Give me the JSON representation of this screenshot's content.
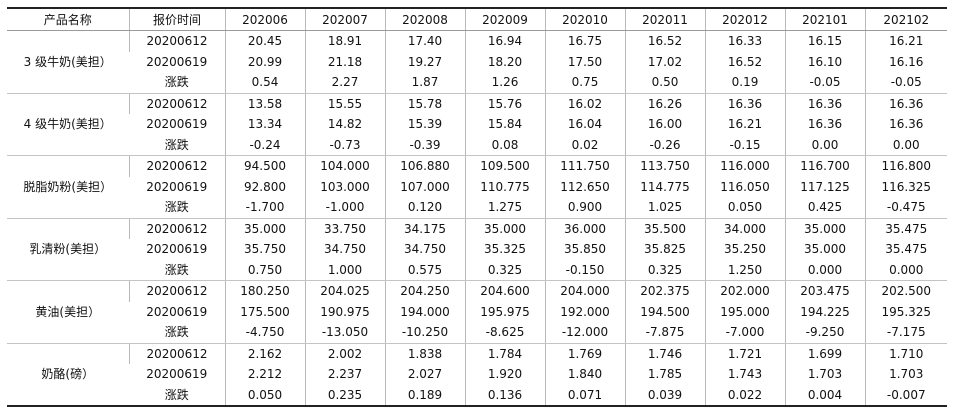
{
  "headers": [
    "产品名称",
    "报价时间",
    "202006",
    "202007",
    "202008",
    "202009",
    "202010",
    "202011",
    "202012",
    "202101",
    "202102"
  ],
  "groups": [
    {
      "name": "3 级牛奶(美担）",
      "rows": [
        {
          "date": "20200612",
          "values": [
            "20.45",
            "18.91",
            "17.40",
            "16.94",
            "16.75",
            "16.52",
            "16.33",
            "16.15",
            "16.21"
          ]
        },
        {
          "date": "20200619",
          "values": [
            "20.99",
            "21.18",
            "19.27",
            "18.20",
            "17.50",
            "17.02",
            "16.52",
            "16.10",
            "16.16"
          ]
        },
        {
          "date": "涨跌",
          "values": [
            "0.54",
            "2.27",
            "1.87",
            "1.26",
            "0.75",
            "0.50",
            "0.19",
            "-0.05",
            "-0.05"
          ]
        }
      ]
    },
    {
      "name": "4 级牛奶(美担）",
      "rows": [
        {
          "date": "20200612",
          "values": [
            "13.58",
            "15.55",
            "15.78",
            "15.76",
            "16.02",
            "16.26",
            "16.36",
            "16.36",
            "16.36"
          ]
        },
        {
          "date": "20200619",
          "values": [
            "13.34",
            "14.82",
            "15.39",
            "15.84",
            "16.04",
            "16.00",
            "16.21",
            "16.36",
            "16.36"
          ]
        },
        {
          "date": "涨跌",
          "values": [
            "-0.24",
            "-0.73",
            "-0.39",
            "0.08",
            "0.02",
            "-0.26",
            "-0.15",
            "0.00",
            "0.00"
          ]
        }
      ]
    },
    {
      "name": "脱脂奶粉(美担）",
      "rows": [
        {
          "date": "20200612",
          "values": [
            "94.500",
            "104.000",
            "106.880",
            "109.500",
            "111.750",
            "113.750",
            "116.000",
            "116.700",
            "116.800"
          ]
        },
        {
          "date": "20200619",
          "values": [
            "92.800",
            "103.000",
            "107.000",
            "110.775",
            "112.650",
            "114.775",
            "116.050",
            "117.125",
            "116.325"
          ]
        },
        {
          "date": "涨跌",
          "values": [
            "-1.700",
            "-1.000",
            "0.120",
            "1.275",
            "0.900",
            "1.025",
            "0.050",
            "0.425",
            "-0.475"
          ]
        }
      ]
    },
    {
      "name": "乳清粉(美担）",
      "rows": [
        {
          "date": "20200612",
          "values": [
            "35.000",
            "33.750",
            "34.175",
            "35.000",
            "36.000",
            "35.500",
            "34.000",
            "35.000",
            "35.475"
          ]
        },
        {
          "date": "20200619",
          "values": [
            "35.750",
            "34.750",
            "34.750",
            "35.325",
            "35.850",
            "35.825",
            "35.250",
            "35.000",
            "35.475"
          ]
        },
        {
          "date": "涨跌",
          "values": [
            "0.750",
            "1.000",
            "0.575",
            "0.325",
            "-0.150",
            "0.325",
            "1.250",
            "0.000",
            "0.000"
          ]
        }
      ]
    },
    {
      "name": "黄油(美担）",
      "rows": [
        {
          "date": "20200612",
          "values": [
            "180.250",
            "204.025",
            "204.250",
            "204.600",
            "204.000",
            "202.375",
            "202.000",
            "203.475",
            "202.500"
          ]
        },
        {
          "date": "20200619",
          "values": [
            "175.500",
            "190.975",
            "194.000",
            "195.975",
            "192.000",
            "194.500",
            "195.000",
            "194.225",
            "195.325"
          ]
        },
        {
          "date": "涨跌",
          "values": [
            "-4.750",
            "-13.050",
            "-10.250",
            "-8.625",
            "-12.000",
            "-7.875",
            "-7.000",
            "-9.250",
            "-7.175"
          ]
        }
      ]
    },
    {
      "name": "奶酪(磅）",
      "rows": [
        {
          "date": "20200612",
          "values": [
            "2.162",
            "2.002",
            "1.838",
            "1.784",
            "1.769",
            "1.746",
            "1.721",
            "1.699",
            "1.710"
          ]
        },
        {
          "date": "20200619",
          "values": [
            "2.212",
            "2.237",
            "2.027",
            "1.920",
            "1.840",
            "1.785",
            "1.743",
            "1.703",
            "1.703"
          ]
        },
        {
          "date": "涨跌",
          "values": [
            "0.050",
            "0.235",
            "0.189",
            "0.136",
            "0.071",
            "0.039",
            "0.022",
            "0.004",
            "-0.007"
          ]
        }
      ]
    }
  ]
}
